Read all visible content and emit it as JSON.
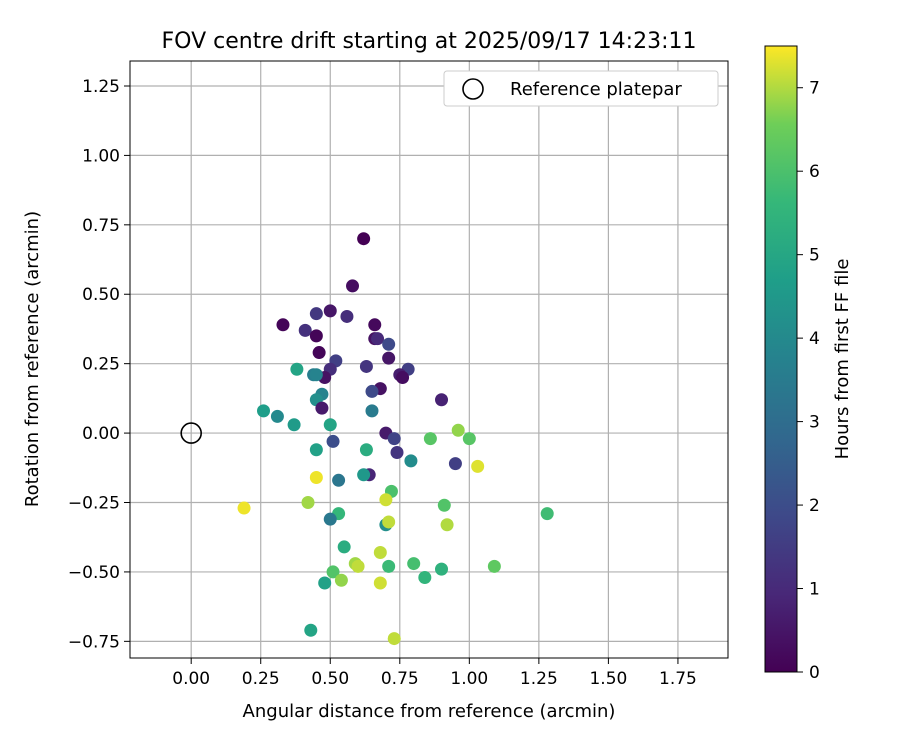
{
  "chart_data": {
    "type": "scatter",
    "title": "FOV centre drift starting at 2025/09/17 14:23:11",
    "xlabel": "Angular distance from reference (arcmin)",
    "ylabel": "Rotation from reference (arcmin)",
    "xlim": [
      -0.22,
      1.93
    ],
    "ylim": [
      -0.81,
      1.34
    ],
    "xticks": [
      0.0,
      0.25,
      0.5,
      0.75,
      1.0,
      1.25,
      1.5,
      1.75
    ],
    "xtick_labels": [
      "0.00",
      "0.25",
      "0.50",
      "0.75",
      "1.00",
      "1.25",
      "1.50",
      "1.75"
    ],
    "yticks": [
      -0.75,
      -0.5,
      -0.25,
      0.0,
      0.25,
      0.5,
      0.75,
      1.0,
      1.25
    ],
    "ytick_labels": [
      "−0.75",
      "−0.50",
      "−0.25",
      "0.00",
      "0.25",
      "0.50",
      "0.75",
      "1.00",
      "1.25"
    ],
    "grid": true,
    "legend": {
      "position": "top-right",
      "entries": [
        "Reference platepar"
      ]
    },
    "reference_point": {
      "x": 0.0,
      "y": 0.0,
      "label": "Reference platepar"
    },
    "colorbar": {
      "label": "Hours from first FF file",
      "colormap": "viridis",
      "range": [
        0,
        7.5
      ],
      "ticks": [
        0,
        1,
        2,
        3,
        4,
        5,
        6,
        7
      ],
      "tick_labels": [
        "0",
        "1",
        "2",
        "3",
        "4",
        "5",
        "6",
        "7"
      ]
    },
    "points": [
      {
        "x": 0.62,
        "y": 0.7,
        "h": 0.0
      },
      {
        "x": 0.58,
        "y": 0.53,
        "h": 0.3
      },
      {
        "x": 0.33,
        "y": 0.39,
        "h": 0.1
      },
      {
        "x": 0.5,
        "y": 0.44,
        "h": 0.5
      },
      {
        "x": 0.45,
        "y": 0.43,
        "h": 1.4
      },
      {
        "x": 0.56,
        "y": 0.42,
        "h": 1.1
      },
      {
        "x": 0.41,
        "y": 0.37,
        "h": 1.2
      },
      {
        "x": 0.45,
        "y": 0.35,
        "h": 0.1
      },
      {
        "x": 0.66,
        "y": 0.39,
        "h": 0.2
      },
      {
        "x": 0.66,
        "y": 0.34,
        "h": 0.4
      },
      {
        "x": 0.67,
        "y": 0.34,
        "h": 1.0
      },
      {
        "x": 0.71,
        "y": 0.32,
        "h": 1.9
      },
      {
        "x": 0.46,
        "y": 0.29,
        "h": 0.1
      },
      {
        "x": 0.71,
        "y": 0.27,
        "h": 0.5
      },
      {
        "x": 0.52,
        "y": 0.26,
        "h": 1.6
      },
      {
        "x": 0.63,
        "y": 0.24,
        "h": 1.3
      },
      {
        "x": 0.78,
        "y": 0.23,
        "h": 1.6
      },
      {
        "x": 0.5,
        "y": 0.23,
        "h": 1.1
      },
      {
        "x": 0.75,
        "y": 0.21,
        "h": 0.7
      },
      {
        "x": 0.76,
        "y": 0.2,
        "h": 0.3
      },
      {
        "x": 0.48,
        "y": 0.2,
        "h": 0.4
      },
      {
        "x": 0.38,
        "y": 0.23,
        "h": 4.9
      },
      {
        "x": 0.44,
        "y": 0.21,
        "h": 3.6
      },
      {
        "x": 0.45,
        "y": 0.21,
        "h": 3.8
      },
      {
        "x": 0.68,
        "y": 0.16,
        "h": 0.4
      },
      {
        "x": 0.65,
        "y": 0.15,
        "h": 1.9
      },
      {
        "x": 0.47,
        "y": 0.14,
        "h": 3.8
      },
      {
        "x": 0.45,
        "y": 0.12,
        "h": 4.2
      },
      {
        "x": 0.9,
        "y": 0.12,
        "h": 0.8
      },
      {
        "x": 0.47,
        "y": 0.09,
        "h": 0.6
      },
      {
        "x": 0.26,
        "y": 0.08,
        "h": 4.7
      },
      {
        "x": 0.31,
        "y": 0.06,
        "h": 4.0
      },
      {
        "x": 0.65,
        "y": 0.08,
        "h": 3.5
      },
      {
        "x": 0.37,
        "y": 0.03,
        "h": 4.6
      },
      {
        "x": 0.5,
        "y": 0.03,
        "h": 4.9
      },
      {
        "x": 0.7,
        "y": 0.0,
        "h": 0.6
      },
      {
        "x": 0.51,
        "y": -0.03,
        "h": 2.0
      },
      {
        "x": 0.73,
        "y": -0.02,
        "h": 1.7
      },
      {
        "x": 0.74,
        "y": -0.07,
        "h": 1.3
      },
      {
        "x": 0.86,
        "y": -0.02,
        "h": 6.2
      },
      {
        "x": 0.96,
        "y": 0.01,
        "h": 6.8
      },
      {
        "x": 1.0,
        "y": -0.02,
        "h": 6.2
      },
      {
        "x": 0.95,
        "y": -0.11,
        "h": 1.6
      },
      {
        "x": 1.03,
        "y": -0.12,
        "h": 7.3
      },
      {
        "x": 0.45,
        "y": -0.06,
        "h": 4.8
      },
      {
        "x": 0.63,
        "y": -0.06,
        "h": 5.2
      },
      {
        "x": 0.79,
        "y": -0.1,
        "h": 4.1
      },
      {
        "x": 0.64,
        "y": -0.15,
        "h": 0.9
      },
      {
        "x": 0.62,
        "y": -0.15,
        "h": 4.5
      },
      {
        "x": 0.53,
        "y": -0.17,
        "h": 3.3
      },
      {
        "x": 0.45,
        "y": -0.16,
        "h": 7.4
      },
      {
        "x": 0.72,
        "y": -0.21,
        "h": 6.0
      },
      {
        "x": 0.7,
        "y": -0.24,
        "h": 7.2
      },
      {
        "x": 0.42,
        "y": -0.25,
        "h": 6.9
      },
      {
        "x": 0.19,
        "y": -0.27,
        "h": 7.4
      },
      {
        "x": 0.91,
        "y": -0.26,
        "h": 6.1
      },
      {
        "x": 1.28,
        "y": -0.29,
        "h": 5.8
      },
      {
        "x": 0.53,
        "y": -0.29,
        "h": 5.6
      },
      {
        "x": 0.5,
        "y": -0.31,
        "h": 3.4
      },
      {
        "x": 0.7,
        "y": -0.33,
        "h": 4.2
      },
      {
        "x": 0.71,
        "y": -0.32,
        "h": 7.1
      },
      {
        "x": 0.92,
        "y": -0.33,
        "h": 7.0
      },
      {
        "x": 0.55,
        "y": -0.41,
        "h": 5.2
      },
      {
        "x": 0.68,
        "y": -0.43,
        "h": 7.1
      },
      {
        "x": 0.59,
        "y": -0.47,
        "h": 6.9
      },
      {
        "x": 0.6,
        "y": -0.48,
        "h": 7.1
      },
      {
        "x": 0.71,
        "y": -0.48,
        "h": 5.7
      },
      {
        "x": 0.8,
        "y": -0.47,
        "h": 5.9
      },
      {
        "x": 0.9,
        "y": -0.49,
        "h": 5.4
      },
      {
        "x": 1.09,
        "y": -0.48,
        "h": 6.3
      },
      {
        "x": 0.51,
        "y": -0.5,
        "h": 6.1
      },
      {
        "x": 0.84,
        "y": -0.52,
        "h": 5.5
      },
      {
        "x": 0.54,
        "y": -0.53,
        "h": 6.8
      },
      {
        "x": 0.48,
        "y": -0.54,
        "h": 4.8
      },
      {
        "x": 0.68,
        "y": -0.54,
        "h": 7.2
      },
      {
        "x": 0.43,
        "y": -0.71,
        "h": 4.9
      },
      {
        "x": 0.73,
        "y": -0.74,
        "h": 7.1
      }
    ]
  }
}
